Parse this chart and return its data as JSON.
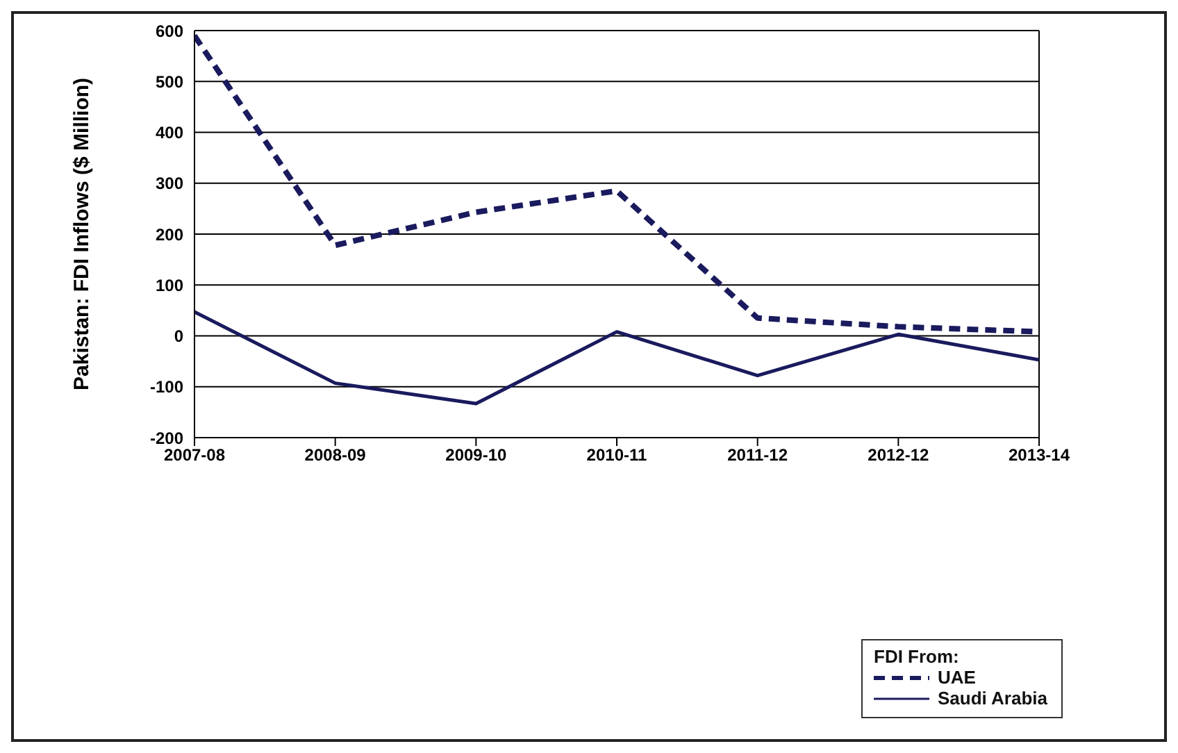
{
  "chart_data": {
    "type": "line",
    "ylabel": "Pakistan: FDI Inflows ($ Million)",
    "legend_title": "FDI From:",
    "categories": [
      "2007-08",
      "2008-09",
      "2009-10",
      "2010-11",
      "2011-12",
      "2012-12",
      "2013-14"
    ],
    "series": [
      {
        "name": "UAE",
        "color": "#1a1a5e",
        "line_style": "dashed",
        "values": [
          590,
          178,
          243,
          285,
          35,
          18,
          8
        ]
      },
      {
        "name": "Saudi Arabia",
        "color": "#1a1a5e",
        "line_style": "solid",
        "values": [
          47,
          -93,
          -133,
          8,
          -78,
          3,
          -47
        ]
      }
    ],
    "ylim": [
      -200,
      600
    ],
    "yticks": [
      -200,
      -100,
      0,
      100,
      200,
      300,
      400,
      500,
      600
    ],
    "grid": "y",
    "legend": "bottom right",
    "marker": "none"
  }
}
